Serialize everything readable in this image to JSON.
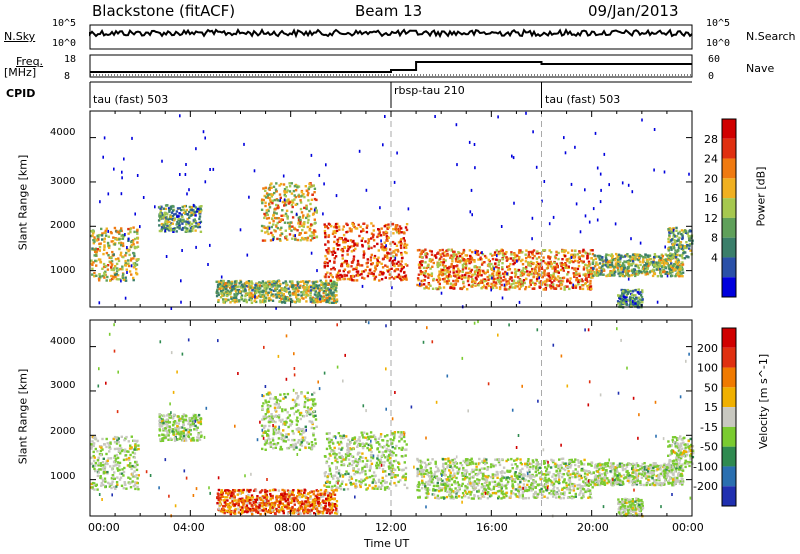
{
  "header": {
    "station": "Blackstone (fitACF)",
    "beam": "Beam 13",
    "date": "09/Jan/2013"
  },
  "noise_panel": {
    "left_label": "N.Sky",
    "left_ticks": [
      "10^5",
      "10^0"
    ],
    "right_label": "N.Search",
    "right_ticks": [
      "10^5",
      "10^0"
    ]
  },
  "freq_panel": {
    "left_label_1": "Freq.",
    "left_label_2": "[MHz]",
    "left_ticks": [
      "18",
      "8"
    ],
    "right_label": "Nave",
    "right_ticks": [
      "60",
      "0"
    ]
  },
  "cpid_panel": {
    "label": "CPID",
    "segments": [
      {
        "name": "tau (fast) 503",
        "start_hour": 0
      },
      {
        "name": "rbsp-tau 210",
        "start_hour": 12
      },
      {
        "name": "tau (fast) 503",
        "start_hour": 18
      }
    ]
  },
  "x_axis": {
    "label": "Time UT",
    "ticks": [
      "00:00",
      "04:00",
      "08:00",
      "12:00",
      "16:00",
      "20:00",
      "00:00"
    ]
  },
  "chart_data": [
    {
      "type": "heatmap",
      "title": "Power",
      "ylabel": "Slant Range [km]",
      "xlabel": "",
      "xlim_hours": [
        0,
        24
      ],
      "ylim": [
        180,
        4600
      ],
      "yticks": [
        "4000",
        "3000",
        "2000",
        "1000"
      ],
      "colorbar": {
        "label": "Power [dB]",
        "ticks": [
          "28",
          "24",
          "20",
          "16",
          "12",
          "8",
          "4"
        ],
        "colors": [
          "#0000dd",
          "#2a50a8",
          "#3a7e6a",
          "#5fa05a",
          "#a6c84f",
          "#f0b020",
          "#f07a10",
          "#e03010",
          "#d00000"
        ]
      },
      "echo_regions": [
        {
          "t0": 0.0,
          "t1": 1.9,
          "r0": 800,
          "r1": 2000,
          "level": 0.55
        },
        {
          "t0": 2.7,
          "t1": 4.4,
          "r0": 1900,
          "r1": 2500,
          "level": 0.35
        },
        {
          "t0": 5.0,
          "t1": 9.8,
          "r0": 300,
          "r1": 800,
          "level": 0.45
        },
        {
          "t0": 6.8,
          "t1": 9.0,
          "r0": 1700,
          "r1": 3000,
          "level": 0.6
        },
        {
          "t0": 9.3,
          "t1": 12.6,
          "r0": 800,
          "r1": 2100,
          "level": 0.8
        },
        {
          "t0": 13.0,
          "t1": 20.0,
          "r0": 600,
          "r1": 1500,
          "level": 0.7
        },
        {
          "t0": 20.0,
          "t1": 23.6,
          "r0": 900,
          "r1": 1400,
          "level": 0.45
        },
        {
          "t0": 21.0,
          "t1": 22.0,
          "r0": 200,
          "r1": 600,
          "level": 0.3
        },
        {
          "t0": 23.0,
          "t1": 24.0,
          "r0": 1300,
          "r1": 2000,
          "level": 0.4
        }
      ]
    },
    {
      "type": "heatmap",
      "title": "Velocity",
      "ylabel": "Slant Range [km]",
      "xlabel": "Time UT",
      "xlim_hours": [
        0,
        24
      ],
      "ylim": [
        180,
        4600
      ],
      "yticks": [
        "4000",
        "3000",
        "2000",
        "1000"
      ],
      "colorbar": {
        "label": "Velocity [m s^-1]",
        "ticks": [
          "200",
          "100",
          "50",
          "15",
          "-15",
          "-50",
          "-100",
          "-200"
        ],
        "colors": [
          "#2030b0",
          "#2a6fb0",
          "#2f8a50",
          "#7acb30",
          "#c8c8c0",
          "#f0b000",
          "#f07a00",
          "#e03010",
          "#d00000"
        ]
      },
      "echo_regions": [
        {
          "t0": 0.0,
          "t1": 1.9,
          "r0": 800,
          "r1": 2000,
          "level": 0.45
        },
        {
          "t0": 2.7,
          "t1": 4.4,
          "r0": 1900,
          "r1": 2500,
          "level": 0.45
        },
        {
          "t0": 5.0,
          "t1": 9.8,
          "r0": 250,
          "r1": 800,
          "level": 0.75
        },
        {
          "t0": 6.8,
          "t1": 9.0,
          "r0": 1700,
          "r1": 3000,
          "level": 0.45
        },
        {
          "t0": 9.3,
          "t1": 12.6,
          "r0": 800,
          "r1": 2100,
          "level": 0.45
        },
        {
          "t0": 13.0,
          "t1": 20.0,
          "r0": 600,
          "r1": 1500,
          "level": 0.45
        },
        {
          "t0": 20.0,
          "t1": 23.6,
          "r0": 900,
          "r1": 1400,
          "level": 0.45
        },
        {
          "t0": 21.0,
          "t1": 22.0,
          "r0": 200,
          "r1": 600,
          "level": 0.45
        },
        {
          "t0": 23.0,
          "t1": 24.0,
          "r0": 1300,
          "r1": 2000,
          "level": 0.45
        }
      ]
    }
  ]
}
